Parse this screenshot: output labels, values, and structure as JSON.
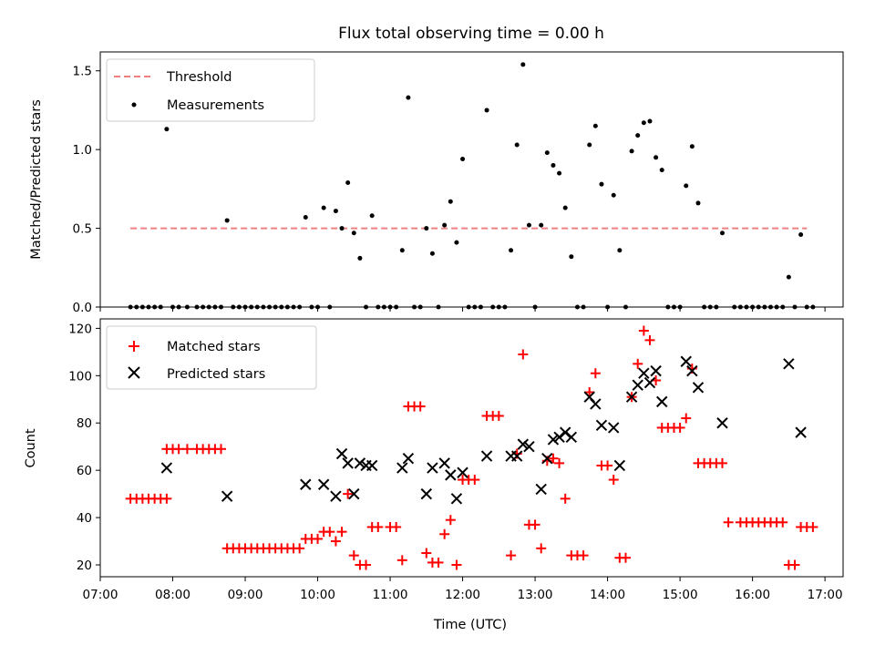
{
  "chart_data": [
    {
      "type": "scatter",
      "title": "Flux total observing time = 0.00 h",
      "xlabel": "",
      "ylabel": "Matched/Predicted stars",
      "xlim": [
        "07:00",
        "17:15"
      ],
      "ylim": [
        0,
        1.62
      ],
      "yticks": [
        "0.0",
        "0.5",
        "1.0",
        "1.5"
      ],
      "ytick_values": [
        0,
        0.5,
        1.0,
        1.5
      ],
      "grid": false,
      "legend_position": "top-left",
      "colors": {
        "threshold": "#f08080",
        "measurements": "#000000"
      },
      "threshold": {
        "name": "Threshold",
        "y": 0.5,
        "x_range": [
          "07:25",
          "16:45"
        ]
      },
      "measurements": {
        "name": "Measurements",
        "points": [
          [
            "07:25",
            0
          ],
          [
            "07:30",
            0
          ],
          [
            "07:35",
            0
          ],
          [
            "07:40",
            0
          ],
          [
            "07:45",
            0
          ],
          [
            "07:50",
            0
          ],
          [
            "07:55",
            1.13
          ],
          [
            "08:00",
            0
          ],
          [
            "08:05",
            0
          ],
          [
            "08:12",
            0
          ],
          [
            "08:20",
            0
          ],
          [
            "08:25",
            0
          ],
          [
            "08:30",
            0
          ],
          [
            "08:35",
            0
          ],
          [
            "08:40",
            0
          ],
          [
            "08:45",
            0.55
          ],
          [
            "08:50",
            0
          ],
          [
            "08:55",
            0
          ],
          [
            "09:00",
            0
          ],
          [
            "09:05",
            0
          ],
          [
            "09:10",
            0
          ],
          [
            "09:15",
            0
          ],
          [
            "09:20",
            0
          ],
          [
            "09:25",
            0
          ],
          [
            "09:30",
            0
          ],
          [
            "09:35",
            0
          ],
          [
            "09:40",
            0
          ],
          [
            "09:45",
            0
          ],
          [
            "09:50",
            0.57
          ],
          [
            "09:55",
            0
          ],
          [
            "10:00",
            0
          ],
          [
            "10:05",
            0.63
          ],
          [
            "10:10",
            0
          ],
          [
            "10:15",
            0.61
          ],
          [
            "10:20",
            0.5
          ],
          [
            "10:25",
            0.79
          ],
          [
            "10:30",
            0.47
          ],
          [
            "10:35",
            0.31
          ],
          [
            "10:40",
            0
          ],
          [
            "10:45",
            0.58
          ],
          [
            "10:50",
            0
          ],
          [
            "10:55",
            0
          ],
          [
            "11:00",
            0
          ],
          [
            "11:05",
            0
          ],
          [
            "11:10",
            0.36
          ],
          [
            "11:15",
            1.33
          ],
          [
            "11:20",
            0
          ],
          [
            "11:25",
            0
          ],
          [
            "11:30",
            0.5
          ],
          [
            "11:35",
            0.34
          ],
          [
            "11:40",
            0
          ],
          [
            "11:45",
            0.52
          ],
          [
            "11:50",
            0.67
          ],
          [
            "11:55",
            0.41
          ],
          [
            "12:00",
            0.94
          ],
          [
            "12:05",
            0
          ],
          [
            "12:10",
            0
          ],
          [
            "12:15",
            0
          ],
          [
            "12:20",
            1.25
          ],
          [
            "12:25",
            0
          ],
          [
            "12:30",
            0
          ],
          [
            "12:35",
            0
          ],
          [
            "12:40",
            0.36
          ],
          [
            "12:45",
            1.03
          ],
          [
            "12:50",
            1.54
          ],
          [
            "12:55",
            0.52
          ],
          [
            "13:00",
            0
          ],
          [
            "13:05",
            0.52
          ],
          [
            "13:10",
            0.98
          ],
          [
            "13:15",
            0.9
          ],
          [
            "13:20",
            0.85
          ],
          [
            "13:25",
            0.63
          ],
          [
            "13:30",
            0.32
          ],
          [
            "13:35",
            0
          ],
          [
            "13:40",
            0
          ],
          [
            "13:45",
            1.03
          ],
          [
            "13:50",
            1.15
          ],
          [
            "13:55",
            0.78
          ],
          [
            "14:00",
            0
          ],
          [
            "14:05",
            0.71
          ],
          [
            "14:10",
            0.36
          ],
          [
            "14:15",
            0
          ],
          [
            "14:20",
            0.99
          ],
          [
            "14:25",
            1.09
          ],
          [
            "14:30",
            1.17
          ],
          [
            "14:35",
            1.18
          ],
          [
            "14:40",
            0.95
          ],
          [
            "14:45",
            0.87
          ],
          [
            "14:50",
            0
          ],
          [
            "14:55",
            0
          ],
          [
            "15:00",
            0
          ],
          [
            "15:05",
            0.77
          ],
          [
            "15:10",
            1.02
          ],
          [
            "15:15",
            0.66
          ],
          [
            "15:20",
            0
          ],
          [
            "15:25",
            0
          ],
          [
            "15:30",
            0
          ],
          [
            "15:35",
            0.47
          ],
          [
            "15:45",
            0
          ],
          [
            "15:50",
            0
          ],
          [
            "15:55",
            0
          ],
          [
            "16:00",
            0
          ],
          [
            "16:05",
            0
          ],
          [
            "16:10",
            0
          ],
          [
            "16:15",
            0
          ],
          [
            "16:20",
            0
          ],
          [
            "16:25",
            0
          ],
          [
            "16:30",
            0.19
          ],
          [
            "16:35",
            0
          ],
          [
            "16:40",
            0.46
          ],
          [
            "16:45",
            0
          ],
          [
            "16:50",
            0
          ]
        ]
      }
    },
    {
      "type": "scatter",
      "title": "",
      "xlabel": "Time (UTC)",
      "ylabel": "Count",
      "xlim": [
        "07:00",
        "17:15"
      ],
      "ylim": [
        15,
        124
      ],
      "xticks": [
        "07:00",
        "08:00",
        "09:00",
        "10:00",
        "11:00",
        "12:00",
        "13:00",
        "14:00",
        "15:00",
        "16:00",
        "17:00"
      ],
      "yticks": [
        "20",
        "40",
        "60",
        "80",
        "100",
        "120"
      ],
      "ytick_values": [
        20,
        40,
        60,
        80,
        100,
        120
      ],
      "grid": false,
      "legend_position": "top-left",
      "colors": {
        "matched": "#ff0000",
        "predicted": "#000000"
      },
      "series": [
        {
          "name": "Matched stars",
          "marker": "+",
          "points": [
            [
              "07:25",
              48
            ],
            [
              "07:30",
              48
            ],
            [
              "07:35",
              48
            ],
            [
              "07:40",
              48
            ],
            [
              "07:45",
              48
            ],
            [
              "07:50",
              48
            ],
            [
              "07:55",
              48
            ],
            [
              "07:55",
              69
            ],
            [
              "08:00",
              69
            ],
            [
              "08:05",
              69
            ],
            [
              "08:12",
              69
            ],
            [
              "08:20",
              69
            ],
            [
              "08:25",
              69
            ],
            [
              "08:30",
              69
            ],
            [
              "08:35",
              69
            ],
            [
              "08:40",
              69
            ],
            [
              "08:45",
              27
            ],
            [
              "08:50",
              27
            ],
            [
              "08:55",
              27
            ],
            [
              "09:00",
              27
            ],
            [
              "09:05",
              27
            ],
            [
              "09:10",
              27
            ],
            [
              "09:15",
              27
            ],
            [
              "09:20",
              27
            ],
            [
              "09:25",
              27
            ],
            [
              "09:30",
              27
            ],
            [
              "09:35",
              27
            ],
            [
              "09:40",
              27
            ],
            [
              "09:45",
              27
            ],
            [
              "09:50",
              31
            ],
            [
              "09:55",
              31
            ],
            [
              "10:00",
              31
            ],
            [
              "10:05",
              34
            ],
            [
              "10:10",
              34
            ],
            [
              "10:15",
              30
            ],
            [
              "10:20",
              34
            ],
            [
              "10:25",
              50
            ],
            [
              "10:30",
              24
            ],
            [
              "10:35",
              20
            ],
            [
              "10:40",
              20
            ],
            [
              "10:45",
              36
            ],
            [
              "10:50",
              36
            ],
            [
              "11:00",
              36
            ],
            [
              "11:05",
              36
            ],
            [
              "11:10",
              22
            ],
            [
              "11:15",
              87
            ],
            [
              "11:20",
              87
            ],
            [
              "11:25",
              87
            ],
            [
              "11:30",
              25
            ],
            [
              "11:35",
              21
            ],
            [
              "11:40",
              21
            ],
            [
              "11:45",
              33
            ],
            [
              "11:50",
              39
            ],
            [
              "11:55",
              20
            ],
            [
              "12:00",
              56
            ],
            [
              "12:05",
              56
            ],
            [
              "12:10",
              56
            ],
            [
              "12:20",
              83
            ],
            [
              "12:25",
              83
            ],
            [
              "12:30",
              83
            ],
            [
              "12:40",
              24
            ],
            [
              "12:45",
              67
            ],
            [
              "12:50",
              109
            ],
            [
              "12:55",
              37
            ],
            [
              "13:00",
              37
            ],
            [
              "13:05",
              27
            ],
            [
              "13:10",
              64
            ],
            [
              "13:15",
              65
            ],
            [
              "13:20",
              63
            ],
            [
              "13:25",
              48
            ],
            [
              "13:30",
              24
            ],
            [
              "13:35",
              24
            ],
            [
              "13:40",
              24
            ],
            [
              "13:45",
              93
            ],
            [
              "13:50",
              101
            ],
            [
              "13:55",
              62
            ],
            [
              "14:00",
              62
            ],
            [
              "14:05",
              56
            ],
            [
              "14:10",
              23
            ],
            [
              "14:15",
              23
            ],
            [
              "14:20",
              91
            ],
            [
              "14:25",
              105
            ],
            [
              "14:30",
              119
            ],
            [
              "14:35",
              115
            ],
            [
              "14:40",
              98
            ],
            [
              "14:45",
              78
            ],
            [
              "14:50",
              78
            ],
            [
              "14:55",
              78
            ],
            [
              "15:00",
              78
            ],
            [
              "15:05",
              82
            ],
            [
              "15:10",
              103
            ],
            [
              "15:15",
              63
            ],
            [
              "15:20",
              63
            ],
            [
              "15:25",
              63
            ],
            [
              "15:30",
              63
            ],
            [
              "15:35",
              63
            ],
            [
              "15:40",
              38
            ],
            [
              "15:50",
              38
            ],
            [
              "15:55",
              38
            ],
            [
              "16:00",
              38
            ],
            [
              "16:05",
              38
            ],
            [
              "16:10",
              38
            ],
            [
              "16:15",
              38
            ],
            [
              "16:20",
              38
            ],
            [
              "16:25",
              38
            ],
            [
              "16:30",
              20
            ],
            [
              "16:35",
              20
            ],
            [
              "16:40",
              36
            ],
            [
              "16:45",
              36
            ],
            [
              "16:50",
              36
            ]
          ]
        },
        {
          "name": "Predicted stars",
          "marker": "x",
          "points": [
            [
              "07:55",
              61
            ],
            [
              "08:45",
              49
            ],
            [
              "09:50",
              54
            ],
            [
              "10:05",
              54
            ],
            [
              "10:15",
              49
            ],
            [
              "10:20",
              67
            ],
            [
              "10:25",
              63
            ],
            [
              "10:30",
              50
            ],
            [
              "10:35",
              63
            ],
            [
              "10:40",
              62
            ],
            [
              "10:45",
              62
            ],
            [
              "11:10",
              61
            ],
            [
              "11:15",
              65
            ],
            [
              "11:30",
              50
            ],
            [
              "11:35",
              61
            ],
            [
              "11:45",
              63
            ],
            [
              "11:50",
              58
            ],
            [
              "11:55",
              48
            ],
            [
              "12:00",
              59
            ],
            [
              "12:20",
              66
            ],
            [
              "12:40",
              66
            ],
            [
              "12:45",
              66
            ],
            [
              "12:50",
              71
            ],
            [
              "12:55",
              70
            ],
            [
              "13:05",
              52
            ],
            [
              "13:10",
              65
            ],
            [
              "13:15",
              73
            ],
            [
              "13:20",
              74
            ],
            [
              "13:25",
              76
            ],
            [
              "13:30",
              74
            ],
            [
              "13:45",
              91
            ],
            [
              "13:50",
              88
            ],
            [
              "13:55",
              79
            ],
            [
              "14:05",
              78
            ],
            [
              "14:10",
              62
            ],
            [
              "14:20",
              91
            ],
            [
              "14:25",
              96
            ],
            [
              "14:30",
              101
            ],
            [
              "14:35",
              97
            ],
            [
              "14:40",
              102
            ],
            [
              "14:45",
              89
            ],
            [
              "15:05",
              106
            ],
            [
              "15:10",
              102
            ],
            [
              "15:15",
              95
            ],
            [
              "15:35",
              80
            ],
            [
              "16:30",
              105
            ],
            [
              "16:40",
              76
            ]
          ]
        }
      ]
    }
  ]
}
